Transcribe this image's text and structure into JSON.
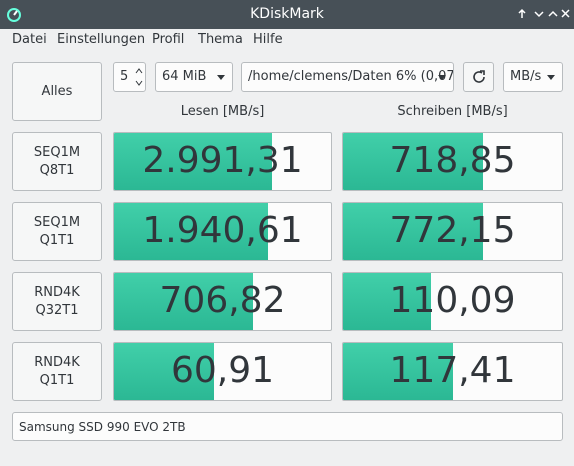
{
  "window": {
    "title": "KDiskMark"
  },
  "menu": [
    "Datei",
    "Einstellungen",
    "Profil",
    "Thema",
    "Hilfe"
  ],
  "controls": {
    "all_button": "Alles",
    "count": "5",
    "size": "64 MiB",
    "path": "/home/clemens/Daten 6% (0,07",
    "unit": "MB/s"
  },
  "headers": {
    "read": "Lesen [MB/s]",
    "write": "Schreiben [MB/s]"
  },
  "rows": [
    {
      "label": [
        "SEQ1M",
        "Q8T1"
      ],
      "read": "2.991,31",
      "write": "718,85"
    },
    {
      "label": [
        "SEQ1M",
        "Q1T1"
      ],
      "read": "1.940,61",
      "write": "772,15"
    },
    {
      "label": [
        "RND4K",
        "Q32T1"
      ],
      "read": "706,82",
      "write": "110,09"
    },
    {
      "label": [
        "RND4K",
        "Q1T1"
      ],
      "read": "60,91",
      "write": "117,41"
    }
  ],
  "status": "Samsung SSD 990 EVO 2TB"
}
